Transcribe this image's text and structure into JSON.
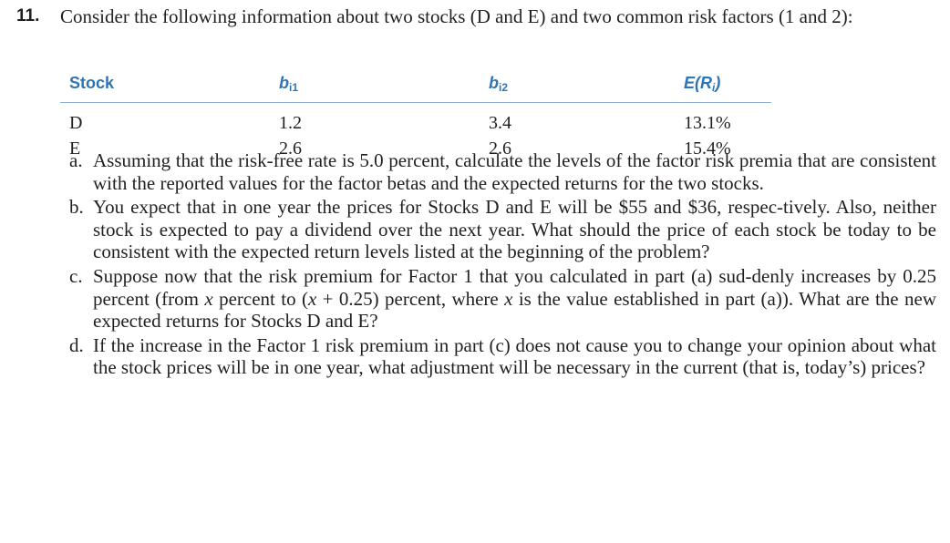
{
  "question": {
    "number": "11.",
    "intro": "Consider the following information about two stocks (D and E) and two common risk factors (1 and 2):"
  },
  "table": {
    "headers": {
      "stock": "Stock",
      "b1_base": "b",
      "b1_sub": "i1",
      "b2_base": "b",
      "b2_sub": "i2",
      "er": "E(R",
      "er_sub": "i",
      "er_close": ")"
    },
    "rows": [
      {
        "stock": "D",
        "b1": "1.2",
        "b2": "3.4",
        "er": "13.1%"
      },
      {
        "stock": "E",
        "b1": "2.6",
        "b2": "2.6",
        "er": "15.4%"
      }
    ]
  },
  "parts": [
    {
      "label": "a.",
      "text": "Assuming that the risk-free rate is 5.0 percent, calculate the levels of the factor risk premia that are consistent with the reported values for the factor betas and the expected returns for the two stocks."
    },
    {
      "label": "b.",
      "text": "You expect that in one year the prices for Stocks D and E will be $55 and $36, respec-tively. Also, neither stock is expected to pay a dividend over the next year. What should the price of each stock be today to be consistent with the expected return levels listed at the beginning of the problem?"
    },
    {
      "label": "c.",
      "text_1": "Suppose now that the risk premium for Factor 1 that you calculated in part (a) sud-denly increases by 0.25 percent (from ",
      "var_1": "x",
      "text_2": " percent to (",
      "var_2": "x",
      "text_3": " + 0.25) percent, where ",
      "var_3": "x",
      "text_4": " is the value established in part (a)). What are the new expected returns for Stocks D and E?"
    },
    {
      "label": "d.",
      "text": "If the increase in the Factor 1 risk premium in part (c) does not cause you to change your opinion about what the stock prices will be in one year, what adjustment will be necessary in the current (that is, today’s) prices?"
    }
  ]
}
